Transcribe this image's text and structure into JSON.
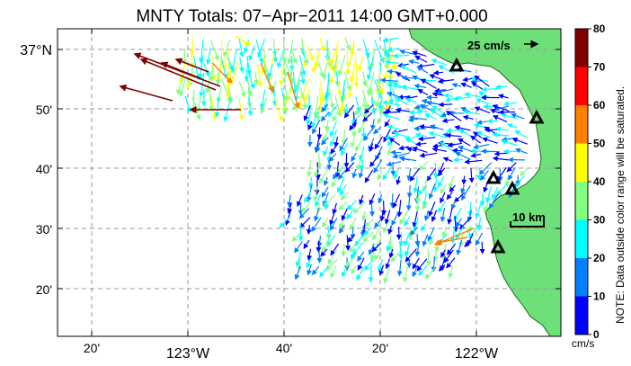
{
  "title": "MNTY Totals: 07−Apr−2011 14:00 GMT+0.000",
  "axes": {
    "lat_labels": [
      "37°N",
      "50'",
      "40'",
      "30'",
      "20'"
    ],
    "lon_labels": [
      "20'",
      "123°W",
      "40'",
      "20'",
      "122°W"
    ]
  },
  "scale_vector_label": "25 cm/s",
  "distance_scale_label": "10 km",
  "colorbar": {
    "ticks": [
      "80",
      "70",
      "60",
      "50",
      "40",
      "30",
      "20",
      "10",
      "0"
    ],
    "unit": "cm/s",
    "note": "NOTE: Data outside color range will be saturated.",
    "colors": [
      "#800000",
      "#ff0000",
      "#ff8000",
      "#ffff00",
      "#80ff80",
      "#00ffff",
      "#0080ff",
      "#0000ff"
    ]
  },
  "colors": {
    "land": "#6ee07a",
    "coast": "#1a6a1a",
    "grid": "#999999",
    "station_marker": "#000000"
  },
  "stations": {
    "count": 5,
    "icon": "triangle-station-icon"
  },
  "current_field_icon": "current-vector-arrows"
}
